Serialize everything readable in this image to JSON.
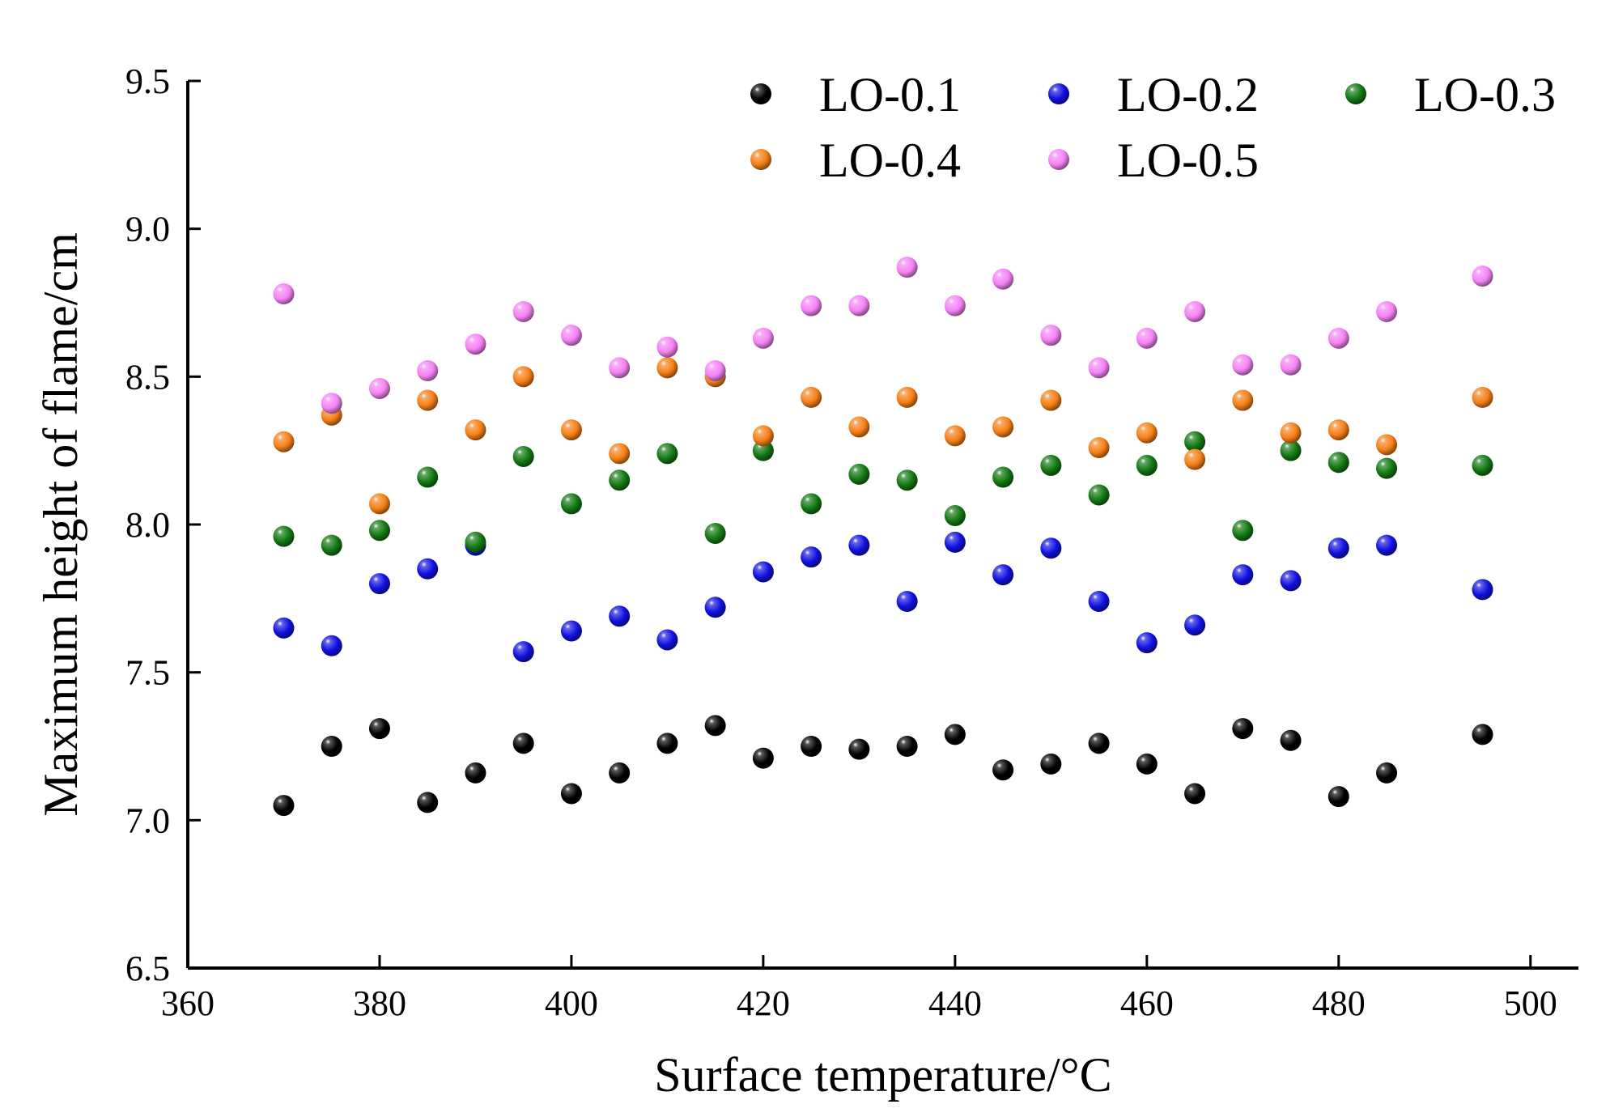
{
  "chart_data": {
    "type": "scatter",
    "title": "",
    "xlabel": "Surface temperature/°C",
    "ylabel": "Maximum height of flame/cm",
    "xlim": [
      360,
      505
    ],
    "ylim": [
      6.5,
      9.5
    ],
    "xticks": [
      360,
      380,
      400,
      420,
      440,
      460,
      480,
      500
    ],
    "xtick_labels": [
      "360",
      "380",
      "400",
      "420",
      "440",
      "460",
      "480",
      "500"
    ],
    "yticks": [
      6.5,
      7.0,
      7.5,
      8.0,
      8.5,
      9.0,
      9.5
    ],
    "ytick_labels": [
      "6.5",
      "7.0",
      "7.5",
      "8.0",
      "8.5",
      "9.0",
      "9.5"
    ],
    "grid": false,
    "legend_position": "top-right",
    "x": [
      370,
      375,
      380,
      385,
      390,
      395,
      400,
      405,
      410,
      415,
      420,
      425,
      430,
      435,
      440,
      445,
      450,
      455,
      460,
      465,
      470,
      475,
      480,
      485,
      495
    ],
    "series": [
      {
        "name": "LO-0.1",
        "color": "#000000",
        "values": [
          7.05,
          7.25,
          7.31,
          7.06,
          7.16,
          7.26,
          7.09,
          7.16,
          7.26,
          7.32,
          7.21,
          7.25,
          7.24,
          7.25,
          7.29,
          7.17,
          7.19,
          7.26,
          7.19,
          7.09,
          7.31,
          7.27,
          7.08,
          7.16,
          7.29
        ]
      },
      {
        "name": "LO-0.2",
        "color": "#1010e0",
        "values": [
          7.65,
          7.59,
          7.8,
          7.85,
          7.93,
          7.57,
          7.64,
          7.69,
          7.61,
          7.72,
          7.84,
          7.89,
          7.93,
          7.74,
          7.94,
          7.83,
          7.92,
          7.74,
          7.6,
          7.66,
          7.83,
          7.81,
          7.92,
          7.93,
          7.78
        ]
      },
      {
        "name": "LO-0.3",
        "color": "#127812",
        "values": [
          7.96,
          7.93,
          7.98,
          8.16,
          7.94,
          8.23,
          8.07,
          8.15,
          8.24,
          7.97,
          8.25,
          8.07,
          8.17,
          8.15,
          8.03,
          8.16,
          8.2,
          8.1,
          8.2,
          8.28,
          7.98,
          8.25,
          8.21,
          8.19,
          8.2
        ]
      },
      {
        "name": "LO-0.4",
        "color": "#f57f17",
        "values": [
          8.28,
          8.37,
          8.07,
          8.42,
          8.32,
          8.5,
          8.32,
          8.24,
          8.53,
          8.5,
          8.3,
          8.43,
          8.33,
          8.43,
          8.3,
          8.33,
          8.42,
          8.26,
          8.31,
          8.22,
          8.42,
          8.31,
          8.32,
          8.27,
          8.43
        ]
      },
      {
        "name": "LO-0.5",
        "color": "#f582f5",
        "values": [
          8.78,
          8.41,
          8.46,
          8.52,
          8.61,
          8.72,
          8.64,
          8.53,
          8.6,
          8.52,
          8.63,
          8.74,
          8.74,
          8.87,
          8.74,
          8.83,
          8.64,
          8.53,
          8.63,
          8.72,
          8.54,
          8.54,
          8.63,
          8.72,
          8.84
        ]
      }
    ]
  }
}
